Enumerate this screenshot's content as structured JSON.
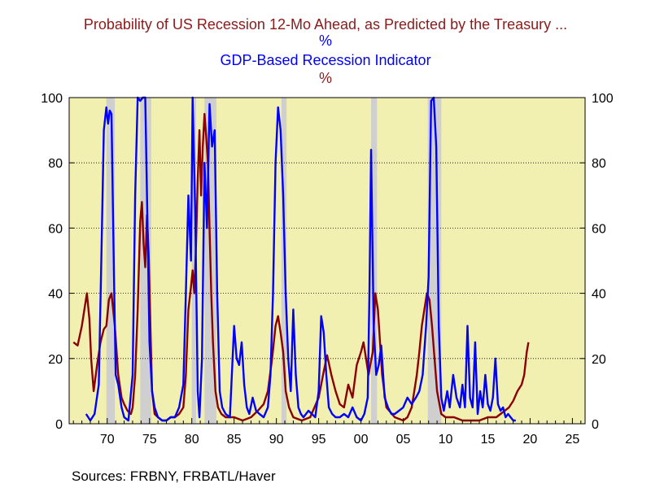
{
  "titles": {
    "series1_title": "Probability of US Recession 12-Mo Ahead, as Predicted by the Treasury ...",
    "series1_unit": "%",
    "series2_title": "GDP-Based Recession Indicator",
    "series2_unit": "%"
  },
  "source": "Sources:  FRBNY, FRBATL/Haver",
  "colors": {
    "background": "#f2f0b0",
    "recession_band": "#cfcfcf",
    "series1": "#8b0000",
    "series2": "#0000ff",
    "title1": "#8b1a1a",
    "title2": "#0000ff"
  },
  "chart_data": {
    "type": "line",
    "xlim": [
      1965.5,
      2026.5
    ],
    "ylim": [
      0,
      100
    ],
    "x_ticks": [
      1970,
      1975,
      1980,
      1985,
      1990,
      1995,
      2000,
      2005,
      2010,
      2015,
      2020,
      2025
    ],
    "x_tick_labels": [
      "70",
      "75",
      "80",
      "85",
      "90",
      "95",
      "00",
      "05",
      "10",
      "15",
      "20",
      "25"
    ],
    "y_ticks": [
      0,
      20,
      40,
      60,
      80,
      100
    ],
    "y_tick_labels": [
      "0",
      "20",
      "40",
      "60",
      "80",
      "100"
    ],
    "right_axis_ticks": [
      0,
      20,
      40,
      60,
      80,
      100
    ],
    "grid": "horizontal dotted",
    "recessions": [
      [
        1969.9,
        1970.9
      ],
      [
        1973.9,
        1975.2
      ],
      [
        1980.0,
        1980.5
      ],
      [
        1981.5,
        1982.9
      ],
      [
        1990.6,
        1991.2
      ],
      [
        2001.2,
        2001.9
      ],
      [
        2007.9,
        2009.5
      ]
    ],
    "series": [
      {
        "name": "Probability of US Recession 12-Mo Ahead, as Predicted by the Treasury ...",
        "x": [
          1966.0,
          1966.5,
          1967.0,
          1967.3,
          1967.6,
          1967.9,
          1968.1,
          1968.4,
          1968.8,
          1969.2,
          1969.6,
          1969.9,
          1970.2,
          1970.5,
          1970.9,
          1971.3,
          1971.7,
          1972.0,
          1972.4,
          1972.8,
          1973.0,
          1973.3,
          1973.6,
          1973.9,
          1974.1,
          1974.3,
          1974.5,
          1974.7,
          1974.9,
          1975.1,
          1975.3,
          1975.6,
          1976.0,
          1976.5,
          1977.0,
          1977.5,
          1978.0,
          1978.5,
          1979.0,
          1979.3,
          1979.6,
          1979.9,
          1980.1,
          1980.3,
          1980.5,
          1980.7,
          1980.9,
          1981.1,
          1981.3,
          1981.5,
          1981.7,
          1981.9,
          1982.1,
          1982.3,
          1982.5,
          1982.8,
          1983.1,
          1983.5,
          1984.0,
          1984.5,
          1985.0,
          1986.0,
          1987.0,
          1987.8,
          1988.5,
          1989.0,
          1989.5,
          1989.9,
          1990.2,
          1990.5,
          1990.8,
          1991.1,
          1991.5,
          1992.0,
          1993.0,
          1994.0,
          1995.0,
          1995.6,
          1996.0,
          1996.5,
          1997.0,
          1997.5,
          1998.0,
          1998.5,
          1999.0,
          1999.5,
          2000.0,
          2000.3,
          2000.6,
          2000.9,
          2001.1,
          2001.4,
          2001.7,
          2002.0,
          2002.5,
          2003.0,
          2004.0,
          2005.0,
          2005.5,
          2006.0,
          2006.3,
          2006.6,
          2006.9,
          2007.2,
          2007.5,
          2007.8,
          2008.1,
          2008.4,
          2008.7,
          2009.0,
          2009.5,
          2010.0,
          2011.0,
          2012.0,
          2013.0,
          2014.0,
          2015.0,
          2016.0,
          2016.5,
          2017.0,
          2017.5,
          2018.0,
          2018.5,
          2019.0,
          2019.3,
          2019.6,
          2019.8
        ],
        "values": [
          25,
          24,
          30,
          35,
          40,
          32,
          20,
          10,
          18,
          25,
          29,
          30,
          38,
          40,
          30,
          15,
          8,
          6,
          4,
          3,
          5,
          15,
          35,
          62,
          68,
          55,
          48,
          64,
          52,
          30,
          10,
          3,
          2,
          1,
          1,
          2,
          2,
          3,
          5,
          15,
          35,
          42,
          47,
          40,
          55,
          75,
          90,
          70,
          85,
          95,
          88,
          80,
          60,
          40,
          25,
          10,
          5,
          3,
          2,
          2,
          2,
          1,
          2,
          4,
          6,
          10,
          20,
          30,
          33,
          28,
          22,
          10,
          5,
          2,
          1,
          2,
          8,
          16,
          21,
          15,
          10,
          6,
          5,
          12,
          8,
          18,
          22,
          25,
          20,
          15,
          18,
          22,
          40,
          35,
          15,
          5,
          2,
          1,
          2,
          5,
          10,
          15,
          22,
          30,
          35,
          40,
          38,
          30,
          20,
          10,
          3,
          2,
          2,
          1,
          1,
          1,
          2,
          2,
          3,
          4,
          5,
          7,
          10,
          12,
          15,
          22,
          25
        ]
      },
      {
        "name": "GDP-Based Recession Indicator",
        "x": [
          1967.5,
          1968.0,
          1968.5,
          1969.0,
          1969.3,
          1969.6,
          1969.9,
          1970.1,
          1970.3,
          1970.5,
          1970.8,
          1971.0,
          1971.3,
          1971.7,
          1972.0,
          1972.5,
          1973.0,
          1973.3,
          1973.6,
          1973.9,
          1974.2,
          1974.5,
          1974.8,
          1975.0,
          1975.3,
          1975.6,
          1976.0,
          1976.5,
          1977.0,
          1977.5,
          1978.0,
          1978.5,
          1979.0,
          1979.3,
          1979.6,
          1979.9,
          1980.1,
          1980.4,
          1980.7,
          1980.9,
          1981.2,
          1981.5,
          1981.8,
          1982.1,
          1982.4,
          1982.7,
          1983.0,
          1983.3,
          1983.6,
          1984.0,
          1984.5,
          1985.0,
          1985.3,
          1985.6,
          1985.9,
          1986.2,
          1986.5,
          1986.8,
          1987.2,
          1987.6,
          1988.0,
          1988.5,
          1989.0,
          1989.3,
          1989.6,
          1989.9,
          1990.2,
          1990.5,
          1990.8,
          1991.1,
          1991.4,
          1991.7,
          1992.0,
          1992.3,
          1992.6,
          1992.9,
          1993.2,
          1993.5,
          1993.8,
          1994.2,
          1994.6,
          1995.0,
          1995.3,
          1995.6,
          1995.9,
          1996.2,
          1996.6,
          1997.0,
          1997.5,
          1998.0,
          1998.5,
          1999.0,
          1999.5,
          2000.0,
          2000.4,
          2000.8,
          2001.0,
          2001.2,
          2001.5,
          2001.8,
          2002.1,
          2002.4,
          2002.8,
          2003.2,
          2003.6,
          2004.0,
          2004.5,
          2005.0,
          2005.5,
          2006.0,
          2006.5,
          2006.9,
          2007.3,
          2007.7,
          2008.0,
          2008.3,
          2008.6,
          2008.9,
          2009.2,
          2009.5,
          2009.8,
          2010.2,
          2010.5,
          2010.9,
          2011.3,
          2011.7,
          2012.0,
          2012.3,
          2012.6,
          2012.9,
          2013.2,
          2013.5,
          2013.8,
          2014.1,
          2014.4,
          2014.7,
          2015.0,
          2015.3,
          2015.6,
          2015.9,
          2016.2,
          2016.5,
          2016.8,
          2017.1,
          2017.4,
          2017.7,
          2018.0,
          2018.3
        ],
        "values": [
          3,
          1,
          3,
          12,
          50,
          90,
          97,
          92,
          96,
          95,
          45,
          15,
          12,
          5,
          2,
          1,
          15,
          70,
          100,
          99,
          100,
          100,
          55,
          25,
          10,
          5,
          2,
          1,
          1,
          2,
          2,
          5,
          12,
          40,
          70,
          50,
          100,
          65,
          10,
          2,
          20,
          80,
          60,
          98,
          85,
          90,
          40,
          10,
          5,
          3,
          2,
          30,
          20,
          18,
          25,
          12,
          5,
          3,
          8,
          4,
          3,
          2,
          5,
          15,
          40,
          80,
          97,
          90,
          70,
          40,
          20,
          10,
          35,
          15,
          5,
          3,
          2,
          3,
          4,
          3,
          2,
          10,
          33,
          28,
          15,
          5,
          3,
          2,
          2,
          3,
          2,
          5,
          2,
          1,
          3,
          8,
          40,
          84,
          30,
          15,
          18,
          24,
          8,
          5,
          3,
          3,
          4,
          5,
          8,
          6,
          8,
          10,
          15,
          30,
          45,
          99,
          100,
          85,
          30,
          8,
          4,
          10,
          5,
          15,
          8,
          5,
          12,
          5,
          30,
          8,
          5,
          25,
          3,
          10,
          5,
          15,
          6,
          4,
          8,
          20,
          6,
          4,
          5,
          2,
          3,
          2,
          1,
          1
        ]
      }
    ]
  }
}
